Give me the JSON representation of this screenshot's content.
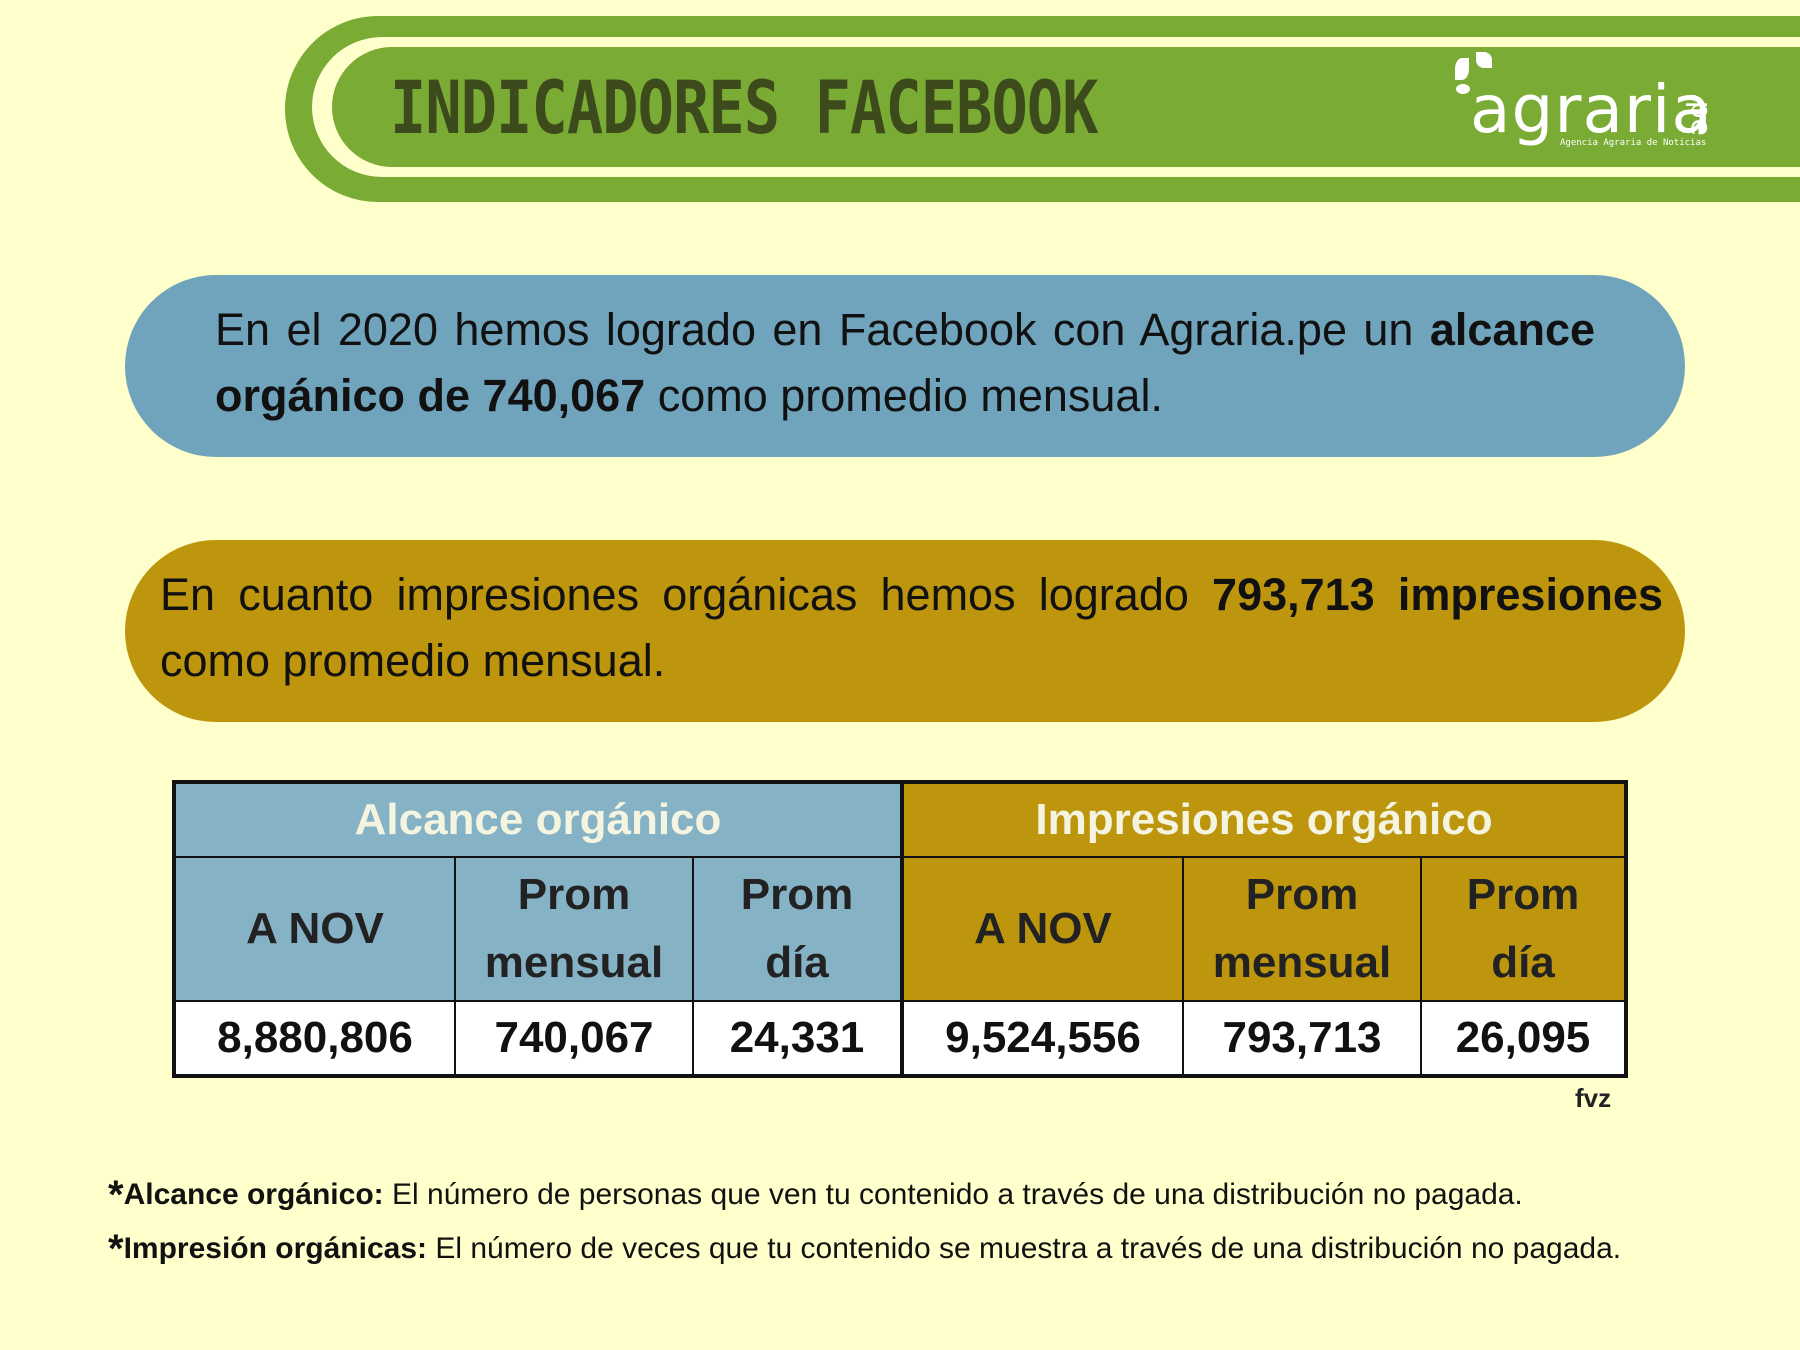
{
  "header": {
    "title": "INDICADORES FACEBOOK",
    "logo": {
      "word": "agraria",
      "suffix": ".pe",
      "tagline": "Agencia Agraria de Noticias",
      "brand_color": "#7aab35"
    }
  },
  "summary_reach": {
    "text_before": "En el 2020 hemos  logrado en Facebook con Agraria.pe un",
    "bold": "alcance orgánico de 740,067",
    "text_after": "como promedio mensual.",
    "color": "#70a4bd"
  },
  "summary_impressions": {
    "text_before": "En cuanto impresiones orgánicas hemos logrado",
    "bold": "793,713 impresiones",
    "text_after": "como promedio mensual.",
    "color": "#bd960e"
  },
  "table": {
    "groups": [
      {
        "label": "Alcance orgánico"
      },
      {
        "label": "Impresiones orgánico"
      }
    ],
    "columns": [
      {
        "label": "A NOV"
      },
      {
        "label_1": "Prom",
        "label_2": "mensual"
      },
      {
        "label_1": "Prom",
        "label_2": "día"
      },
      {
        "label": "A NOV"
      },
      {
        "label_1": "Prom",
        "label_2": "mensual"
      },
      {
        "label_1": "Prom",
        "label_2": "día"
      }
    ],
    "values": [
      "8,880,806",
      "740,067",
      "24,331",
      "9,524,556",
      "793,713",
      "26,095"
    ]
  },
  "credit": "fvz",
  "notes": [
    {
      "star": "*",
      "term": "Alcance orgánico:",
      "text": "El número de personas que ven tu contenido a través de una distribución no pagada."
    },
    {
      "star": "*",
      "term": "Impresión orgánicas:",
      "text": "El número de veces que tu contenido se muestra a través de una distribución no pagada."
    }
  ]
}
